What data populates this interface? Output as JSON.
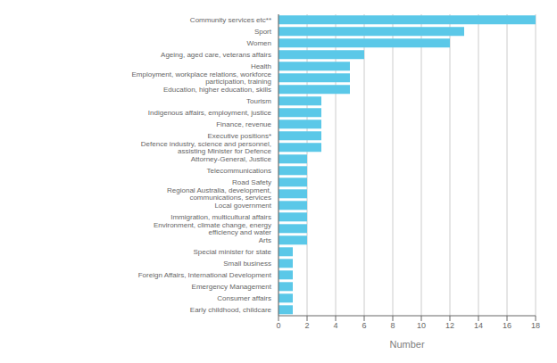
{
  "chart_data": {
    "type": "bar",
    "orientation": "horizontal",
    "xlabel": "Number",
    "categories": [
      "Early childhood, childcare",
      "Consumer affairs",
      "Emergency Management",
      "Foreign Affairs, International Development",
      "Small business",
      "Special minister for state",
      "Arts",
      "Environment, climate change, energy efficiency and water",
      "Immigration, multicultural affairs",
      "Local government",
      "Regional Australia, development, communications, services",
      "Road Safety",
      "Telecommunications",
      "Attorney-General, Justice",
      "Defence industry, science and personnel, assisting Minister for Defence",
      "Executive positions*",
      "Finance, revenue",
      "Indigenous affairs, employment, justice",
      "Tourism",
      "Education, higher education, skills",
      "Employment, workplace relations, workforce participation, training",
      "Health",
      "Ageing, aged care, veterans affairs",
      "Women",
      "Sport",
      "Community services etc**"
    ],
    "values": [
      1,
      1,
      1,
      1,
      1,
      1,
      2,
      2,
      2,
      2,
      2,
      2,
      2,
      2,
      3,
      3,
      3,
      3,
      3,
      5,
      5,
      5,
      6,
      12,
      13,
      18
    ],
    "color": "#5bc8e8",
    "xlim": [
      0,
      18
    ],
    "xticks": [
      0,
      2,
      4,
      6,
      8,
      10,
      12,
      14,
      16,
      18
    ],
    "grid": true
  }
}
